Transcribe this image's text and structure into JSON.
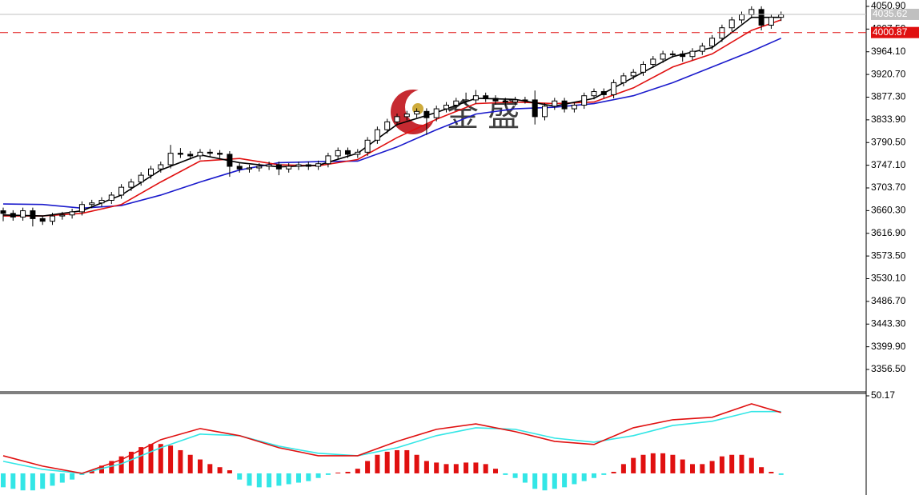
{
  "chart_data": [
    {
      "type": "candlestick",
      "watermark": "金 盛",
      "up_color": "#ffffff",
      "down_color": "#000000",
      "outline_color": "#000000",
      "open": [
        3660,
        3655,
        3648,
        3660,
        3645,
        3640,
        3650,
        3652,
        3658,
        3672,
        3675,
        3680,
        3690,
        3705,
        3715,
        3728,
        3740,
        3748,
        3770,
        3768,
        3765,
        3772,
        3770,
        3768,
        3745,
        3740,
        3742,
        3745,
        3748,
        3740,
        3745,
        3748,
        3745,
        3750,
        3765,
        3775,
        3768,
        3772,
        3795,
        3815,
        3830,
        3840,
        3845,
        3850,
        3838,
        3855,
        3862,
        3870,
        3872,
        3880,
        3875,
        3870,
        3868,
        3872,
        3872,
        3840,
        3860,
        3870,
        3855,
        3862,
        3880,
        3888,
        3882,
        3905,
        3918,
        3925,
        3940,
        3950,
        3960,
        3960,
        3955,
        3965,
        3975,
        3990,
        4010,
        4025,
        4035,
        4045,
        4015,
        4030
      ],
      "high": [
        3666,
        3661,
        3666,
        3666,
        3651,
        3656,
        3658,
        3664,
        3678,
        3681,
        3686,
        3696,
        3711,
        3721,
        3734,
        3746,
        3754,
        3786,
        3780,
        3774,
        3778,
        3778,
        3776,
        3774,
        3751,
        3748,
        3751,
        3754,
        3754,
        3751,
        3754,
        3754,
        3756,
        3771,
        3781,
        3781,
        3778,
        3801,
        3821,
        3836,
        3846,
        3851,
        3856,
        3856,
        3861,
        3868,
        3876,
        3886,
        3891,
        3886,
        3881,
        3876,
        3878,
        3878,
        3890,
        3866,
        3876,
        3876,
        3868,
        3886,
        3894,
        3894,
        3911,
        3924,
        3931,
        3946,
        3956,
        3966,
        3966,
        3966,
        3971,
        3981,
        3996,
        4016,
        4031,
        4041,
        4051,
        4051,
        4036,
        4041
      ],
      "low": [
        3640,
        3641,
        3641,
        3630,
        3633,
        3633,
        3643,
        3645,
        3651,
        3665,
        3668,
        3673,
        3683,
        3698,
        3708,
        3721,
        3733,
        3741,
        3761,
        3758,
        3758,
        3763,
        3761,
        3725,
        3733,
        3733,
        3735,
        3738,
        3728,
        3733,
        3738,
        3738,
        3738,
        3743,
        3758,
        3761,
        3761,
        3765,
        3788,
        3808,
        3823,
        3833,
        3838,
        3805,
        3831,
        3848,
        3855,
        3863,
        3865,
        3868,
        3863,
        3861,
        3861,
        3865,
        3825,
        3833,
        3853,
        3848,
        3848,
        3855,
        3873,
        3875,
        3875,
        3898,
        3911,
        3918,
        3933,
        3943,
        3953,
        3945,
        3948,
        3958,
        3968,
        3983,
        4003,
        4018,
        4028,
        4005,
        4008,
        4023
      ],
      "close": [
        3655,
        3648,
        3660,
        3645,
        3640,
        3650,
        3652,
        3658,
        3672,
        3675,
        3680,
        3690,
        3705,
        3715,
        3728,
        3740,
        3748,
        3770,
        3768,
        3765,
        3772,
        3770,
        3768,
        3745,
        3740,
        3742,
        3745,
        3748,
        3740,
        3745,
        3748,
        3745,
        3750,
        3765,
        3775,
        3768,
        3772,
        3795,
        3815,
        3830,
        3840,
        3845,
        3850,
        3838,
        3855,
        3862,
        3870,
        3872,
        3880,
        3875,
        3870,
        3868,
        3872,
        3872,
        3840,
        3860,
        3870,
        3855,
        3862,
        3880,
        3888,
        3882,
        3905,
        3918,
        3925,
        3940,
        3950,
        3960,
        3960,
        3955,
        3965,
        3975,
        3990,
        4010,
        4025,
        4035,
        4045,
        4015,
        4030,
        4035
      ],
      "lines": [
        {
          "color": "#1a1acc",
          "x": [
            0,
            4,
            8,
            12,
            16,
            20,
            24,
            28,
            32,
            36,
            40,
            44,
            48,
            52,
            56,
            60,
            64,
            68,
            72,
            76,
            79
          ],
          "values": [
            3673,
            3672,
            3665,
            3670,
            3690,
            3715,
            3738,
            3752,
            3754,
            3755,
            3782,
            3815,
            3845,
            3855,
            3858,
            3865,
            3880,
            3905,
            3935,
            3965,
            3990
          ]
        },
        {
          "color": "#e01010",
          "x": [
            0,
            4,
            8,
            12,
            16,
            20,
            24,
            28,
            32,
            36,
            40,
            44,
            48,
            52,
            56,
            60,
            64,
            68,
            72,
            76,
            79
          ],
          "values": [
            3650,
            3650,
            3655,
            3672,
            3715,
            3755,
            3760,
            3748,
            3746,
            3758,
            3800,
            3835,
            3865,
            3868,
            3865,
            3868,
            3895,
            3935,
            3960,
            4005,
            4025
          ]
        },
        {
          "color": "#000000",
          "x": [
            0,
            4,
            8,
            12,
            16,
            20,
            24,
            28,
            32,
            36,
            40,
            44,
            48,
            52,
            56,
            60,
            64,
            68,
            72,
            76,
            79
          ],
          "values": [
            3652,
            3650,
            3660,
            3690,
            3738,
            3767,
            3752,
            3744,
            3747,
            3770,
            3825,
            3848,
            3875,
            3873,
            3860,
            3875,
            3915,
            3955,
            3972,
            4030,
            4030
          ]
        }
      ],
      "price_lines": [
        {
          "value": 4035.62,
          "color": "#c0c0c0",
          "text_color": "#ffffff"
        },
        {
          "value": 4000.87,
          "color": "#e01010",
          "text_color": "#ffffff"
        }
      ],
      "ylim": [
        3313.7,
        4063.1
      ],
      "yticks": [
        {
          "value": 4050.9,
          "label": "4050.90"
        },
        {
          "value": 4007.5,
          "label": "4007.50"
        },
        {
          "value": 3964.1,
          "label": "3964.10"
        },
        {
          "value": 3920.7,
          "label": "3920.70"
        },
        {
          "value": 3877.3,
          "label": "3877.30"
        },
        {
          "value": 3833.9,
          "label": "3833.90"
        },
        {
          "value": 3790.5,
          "label": "3790.50"
        },
        {
          "value": 3747.1,
          "label": "3747.10"
        },
        {
          "value": 3703.7,
          "label": "3703.70"
        },
        {
          "value": 3660.3,
          "label": "3660.30"
        },
        {
          "value": 3616.9,
          "label": "3616.90"
        },
        {
          "value": 3573.5,
          "label": "3573.50"
        },
        {
          "value": 3530.1,
          "label": "3530.10"
        },
        {
          "value": 3486.7,
          "label": "3486.70"
        },
        {
          "value": 3443.3,
          "label": "3443.30"
        },
        {
          "value": 3399.9,
          "label": "3399.90"
        },
        {
          "value": 3356.5,
          "label": "3356.50"
        }
      ]
    },
    {
      "type": "macd",
      "up_color": "#e01010",
      "down_color": "#33e6e6",
      "histogram": [
        -9,
        -10,
        -11,
        -11,
        -10,
        -8,
        -6,
        -4,
        -1,
        2,
        5,
        8,
        11,
        14,
        17,
        19,
        19,
        18,
        15,
        12,
        9,
        6,
        4,
        2,
        -4,
        -8,
        -9,
        -9,
        -8,
        -7,
        -6,
        -5,
        -3,
        -1,
        0.5,
        1,
        3,
        8,
        12,
        14,
        15,
        15,
        12,
        8,
        7,
        6,
        6,
        7,
        7,
        6,
        3,
        -1,
        -3,
        -6,
        -10,
        -11,
        -10,
        -9,
        -7,
        -5,
        -3,
        -1,
        1,
        6,
        10,
        12,
        13,
        13,
        12,
        9,
        6,
        6,
        8,
        11,
        12,
        12,
        10,
        4,
        1,
        -1
      ],
      "lines": [
        {
          "color": "#33e6e6",
          "x": [
            0,
            4,
            8,
            12,
            16,
            20,
            24,
            28,
            32,
            36,
            40,
            44,
            48,
            52,
            56,
            60,
            64,
            68,
            72,
            76,
            79
          ],
          "values": [
            7.8,
            2.6,
            0,
            6.2,
            16.6,
            25.4,
            24.4,
            17.6,
            13,
            11.4,
            16.6,
            24.4,
            29.5,
            28.5,
            22.8,
            20.2,
            24.4,
            31,
            33.7,
            40,
            40
          ]
        },
        {
          "color": "#e01010",
          "x": [
            0,
            4,
            8,
            12,
            16,
            20,
            24,
            28,
            32,
            36,
            40,
            44,
            48,
            52,
            56,
            60,
            64,
            68,
            72,
            76,
            79
          ],
          "values": [
            11.4,
            4.7,
            0,
            8.8,
            21.8,
            29,
            24.4,
            16.6,
            11.4,
            11.4,
            20.7,
            28.5,
            32,
            27,
            20.7,
            18.7,
            29.5,
            34.7,
            36.3,
            45,
            39.4
          ]
        }
      ],
      "ylim": [
        -14,
        50.17
      ],
      "yticks": [
        50.17
      ]
    }
  ]
}
